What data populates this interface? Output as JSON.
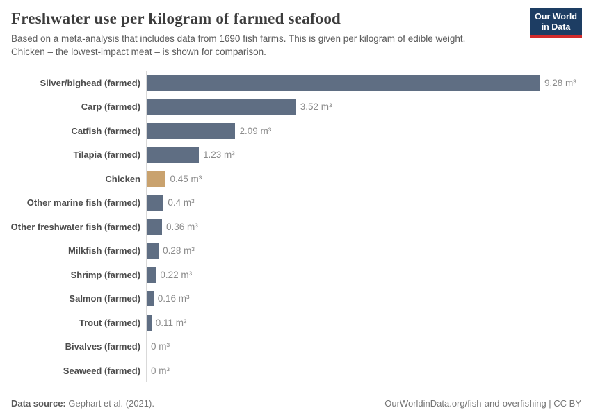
{
  "header": {
    "title": "Freshwater use per kilogram of farmed seafood",
    "subtitle_line1": "Based on a meta-analysis that includes data from 1690 fish farms. This is given per kilogram of edible weight.",
    "subtitle_line2": "Chicken – the lowest-impact meat – is shown for comparison.",
    "logo_line1": "Our World",
    "logo_line2": "in Data"
  },
  "chart_data": {
    "type": "bar",
    "orientation": "horizontal",
    "title": "Freshwater use per kilogram of farmed seafood",
    "unit": "m³",
    "xlim": [
      0,
      9.28
    ],
    "grid": false,
    "legend": "none",
    "bar_color": "#5f6e83",
    "highlight_color": "#c9a26e",
    "bars": [
      {
        "category": "Silver/bighead (farmed)",
        "value": 9.28,
        "label": "9.28 m³",
        "highlight": false
      },
      {
        "category": "Carp (farmed)",
        "value": 3.52,
        "label": "3.52 m³",
        "highlight": false
      },
      {
        "category": "Catfish (farmed)",
        "value": 2.09,
        "label": "2.09 m³",
        "highlight": false
      },
      {
        "category": "Tilapia (farmed)",
        "value": 1.23,
        "label": "1.23 m³",
        "highlight": false
      },
      {
        "category": "Chicken",
        "value": 0.45,
        "label": "0.45 m³",
        "highlight": true
      },
      {
        "category": "Other marine fish (farmed)",
        "value": 0.4,
        "label": "0.4 m³",
        "highlight": false
      },
      {
        "category": "Other freshwater fish (farmed)",
        "value": 0.36,
        "label": "0.36 m³",
        "highlight": false
      },
      {
        "category": "Milkfish (farmed)",
        "value": 0.28,
        "label": "0.28 m³",
        "highlight": false
      },
      {
        "category": "Shrimp (farmed)",
        "value": 0.22,
        "label": "0.22 m³",
        "highlight": false
      },
      {
        "category": "Salmon (farmed)",
        "value": 0.16,
        "label": "0.16 m³",
        "highlight": false
      },
      {
        "category": "Trout (farmed)",
        "value": 0.11,
        "label": "0.11 m³",
        "highlight": false
      },
      {
        "category": "Bivalves (farmed)",
        "value": 0,
        "label": "0 m³",
        "highlight": false
      },
      {
        "category": "Seaweed (farmed)",
        "value": 0,
        "label": "0 m³",
        "highlight": false
      }
    ]
  },
  "footer": {
    "data_source_label": "Data source:",
    "data_source_value": "Gephart et al. (2021).",
    "credit": "OurWorldinData.org/fish-and-overfishing | CC BY"
  },
  "colors": {
    "bar": "#5f6e83",
    "highlight": "#c9a26e",
    "logo_bg": "#1d3d63",
    "logo_accent": "#d22b2b",
    "axis_line": "#d9d9d9"
  }
}
